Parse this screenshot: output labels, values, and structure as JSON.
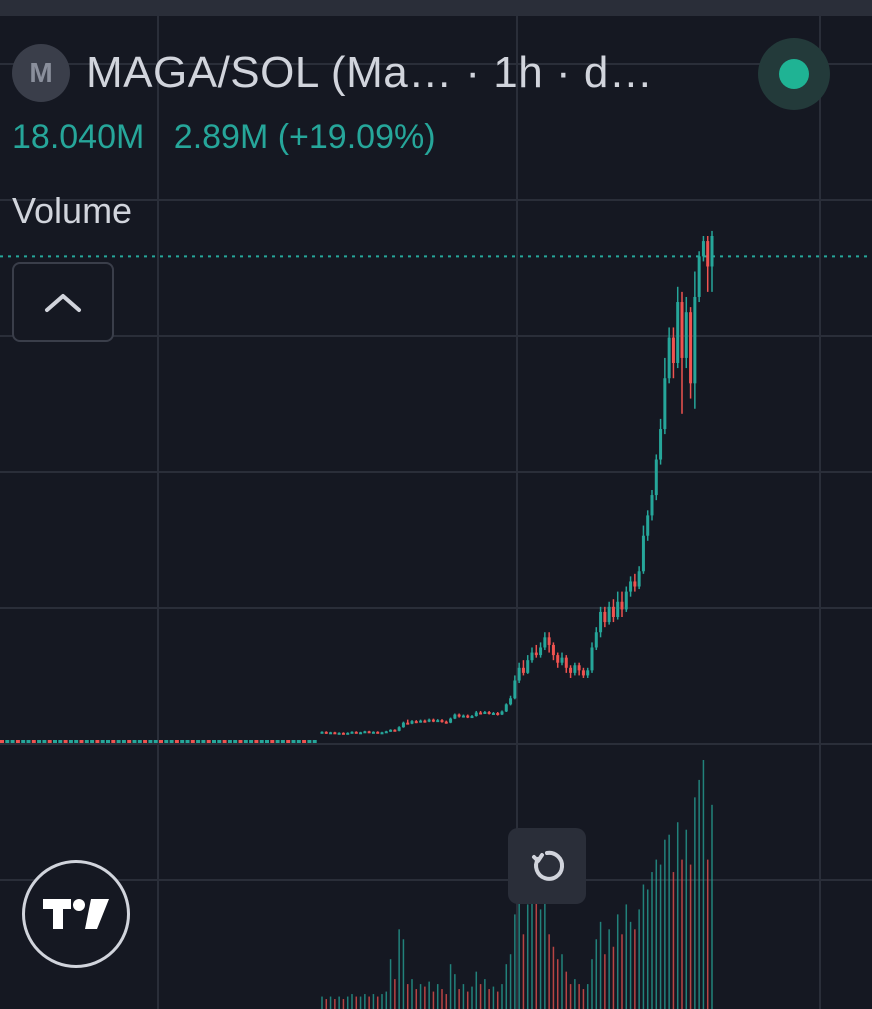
{
  "header": {
    "symbol_icon_letter": "M",
    "title": "MAGA/SOL (Ma…  · 1h · d…",
    "status_color": "#1fb394"
  },
  "values": {
    "volume": "18.040M",
    "change": "2.89M (+19.09%)"
  },
  "indicator": {
    "label": "Volume"
  },
  "icons": {
    "collapse": "chevron-up-icon",
    "reset": "reset-icon",
    "logo": "tradingview-logo-icon"
  },
  "colors": {
    "up": "#26a69a",
    "down": "#ef5350",
    "grid": "#2a2e39",
    "price_line": "#26a69a"
  },
  "chart_data": {
    "type": "candlestick",
    "title": "",
    "xlabel": "",
    "ylabel": "",
    "ylim": [
      0,
      100
    ],
    "last_price_level": 96,
    "candles": [
      [
        2.2,
        2.4,
        2.5,
        2.1
      ],
      [
        2.4,
        2.1,
        2.5,
        2.0
      ],
      [
        2.1,
        2.3,
        2.4,
        2.0
      ],
      [
        2.3,
        2.1,
        2.4,
        2.0
      ],
      [
        2.1,
        2.2,
        2.3,
        2.0
      ],
      [
        2.2,
        2.0,
        2.3,
        1.9
      ],
      [
        2.0,
        2.2,
        2.3,
        1.9
      ],
      [
        2.2,
        2.4,
        2.5,
        2.1
      ],
      [
        2.4,
        2.2,
        2.5,
        2.1
      ],
      [
        2.2,
        2.3,
        2.4,
        2.1
      ],
      [
        2.3,
        2.5,
        2.6,
        2.2
      ],
      [
        2.5,
        2.3,
        2.6,
        2.2
      ],
      [
        2.3,
        2.4,
        2.5,
        2.2
      ],
      [
        2.4,
        2.2,
        2.5,
        2.1
      ],
      [
        2.2,
        2.3,
        2.4,
        2.1
      ],
      [
        2.3,
        2.5,
        2.6,
        2.2
      ],
      [
        2.5,
        2.8,
        2.9,
        2.4
      ],
      [
        2.8,
        2.6,
        2.9,
        2.5
      ],
      [
        2.6,
        3.3,
        3.5,
        2.5
      ],
      [
        3.3,
        4.2,
        4.4,
        3.2
      ],
      [
        4.2,
        4.0,
        4.8,
        3.9
      ],
      [
        4.0,
        4.5,
        4.7,
        3.9
      ],
      [
        4.5,
        4.3,
        4.7,
        4.1
      ],
      [
        4.3,
        4.6,
        4.8,
        4.2
      ],
      [
        4.6,
        4.4,
        4.8,
        4.2
      ],
      [
        4.4,
        4.8,
        5.0,
        4.3
      ],
      [
        4.8,
        4.5,
        5.0,
        4.3
      ],
      [
        4.5,
        4.7,
        4.9,
        4.4
      ],
      [
        4.7,
        4.4,
        4.9,
        4.2
      ],
      [
        4.4,
        4.2,
        4.6,
        4.0
      ],
      [
        4.2,
        5.0,
        5.2,
        4.1
      ],
      [
        5.0,
        5.8,
        6.0,
        4.9
      ],
      [
        5.8,
        5.4,
        6.0,
        5.2
      ],
      [
        5.4,
        5.6,
        5.8,
        5.2
      ],
      [
        5.6,
        5.3,
        5.8,
        5.1
      ],
      [
        5.3,
        5.5,
        5.7,
        5.2
      ],
      [
        5.5,
        6.2,
        6.5,
        5.4
      ],
      [
        6.2,
        6.0,
        6.5,
        5.8
      ],
      [
        6.0,
        6.3,
        6.5,
        5.9
      ],
      [
        6.3,
        5.9,
        6.5,
        5.8
      ],
      [
        5.9,
        6.1,
        6.3,
        5.8
      ],
      [
        6.1,
        5.8,
        6.3,
        5.6
      ],
      [
        5.8,
        6.4,
        6.6,
        5.7
      ],
      [
        6.4,
        7.8,
        8.0,
        6.3
      ],
      [
        7.8,
        9.0,
        9.5,
        7.6
      ],
      [
        9.0,
        12.5,
        13.5,
        8.8
      ],
      [
        12.5,
        15.0,
        16.0,
        12.0
      ],
      [
        15.0,
        14.0,
        16.5,
        13.5
      ],
      [
        14.0,
        16.5,
        17.5,
        13.8
      ],
      [
        16.5,
        18.0,
        19.0,
        16.0
      ],
      [
        18.0,
        17.5,
        19.5,
        17.0
      ],
      [
        17.5,
        19.0,
        20.0,
        17.0
      ],
      [
        19.0,
        21.0,
        22.0,
        18.5
      ],
      [
        21.0,
        19.5,
        22.0,
        18.0
      ],
      [
        19.5,
        17.5,
        20.0,
        16.5
      ],
      [
        17.5,
        16.0,
        18.0,
        15.0
      ],
      [
        16.0,
        17.0,
        18.0,
        15.5
      ],
      [
        17.0,
        15.0,
        17.5,
        14.0
      ],
      [
        15.0,
        14.0,
        15.5,
        13.0
      ],
      [
        14.0,
        15.5,
        16.0,
        13.5
      ],
      [
        15.5,
        14.5,
        16.0,
        13.5
      ],
      [
        14.5,
        13.5,
        15.0,
        13.0
      ],
      [
        13.5,
        14.5,
        15.0,
        13.0
      ],
      [
        14.5,
        19.0,
        20.0,
        14.0
      ],
      [
        19.0,
        22.0,
        23.0,
        18.5
      ],
      [
        22.0,
        26.0,
        27.0,
        21.0
      ],
      [
        26.0,
        24.0,
        27.0,
        23.0
      ],
      [
        24.0,
        27.0,
        28.0,
        23.5
      ],
      [
        27.0,
        25.0,
        28.5,
        24.0
      ],
      [
        25.0,
        28.0,
        30.0,
        24.5
      ],
      [
        28.0,
        26.5,
        30.0,
        25.0
      ],
      [
        26.5,
        30.0,
        31.0,
        26.0
      ],
      [
        30.0,
        32.0,
        33.0,
        29.0
      ],
      [
        32.0,
        31.0,
        33.5,
        30.0
      ],
      [
        31.0,
        34.0,
        35.0,
        30.5
      ],
      [
        34.0,
        41.0,
        43.0,
        33.5
      ],
      [
        41.0,
        45.0,
        46.0,
        40.0
      ],
      [
        45.0,
        49.0,
        50.0,
        44.0
      ],
      [
        49.0,
        56.0,
        57.0,
        48.0
      ],
      [
        56.0,
        62.0,
        64.0,
        55.0
      ],
      [
        62.0,
        72.0,
        76.0,
        61.0
      ],
      [
        72.0,
        80.0,
        82.0,
        71.0
      ],
      [
        80.0,
        75.0,
        82.0,
        72.0
      ],
      [
        75.0,
        87.0,
        90.0,
        74.0
      ],
      [
        87.0,
        76.0,
        89.0,
        65.0
      ],
      [
        76.0,
        85.0,
        88.0,
        74.0
      ],
      [
        85.0,
        71.0,
        86.0,
        68.0
      ],
      [
        71.0,
        88.0,
        93.0,
        66.0
      ],
      [
        88.0,
        96.0,
        97.0,
        87.0
      ],
      [
        96.0,
        99.0,
        100.0,
        95.0
      ],
      [
        99.0,
        94.0,
        100.0,
        89.0
      ],
      [
        94.0,
        100.0,
        101.0,
        89.0
      ]
    ],
    "volume": [
      0.05,
      0.04,
      0.05,
      0.04,
      0.05,
      0.04,
      0.05,
      0.06,
      0.05,
      0.05,
      0.06,
      0.05,
      0.06,
      0.05,
      0.06,
      0.07,
      0.2,
      0.12,
      0.32,
      0.28,
      0.1,
      0.12,
      0.08,
      0.1,
      0.09,
      0.11,
      0.07,
      0.1,
      0.08,
      0.06,
      0.18,
      0.14,
      0.08,
      0.1,
      0.07,
      0.09,
      0.15,
      0.1,
      0.12,
      0.08,
      0.09,
      0.07,
      0.1,
      0.18,
      0.22,
      0.38,
      0.55,
      0.3,
      0.42,
      0.6,
      0.45,
      0.4,
      0.48,
      0.3,
      0.25,
      0.2,
      0.22,
      0.15,
      0.1,
      0.12,
      0.1,
      0.08,
      0.1,
      0.2,
      0.28,
      0.35,
      0.22,
      0.32,
      0.25,
      0.38,
      0.3,
      0.42,
      0.35,
      0.32,
      0.4,
      0.5,
      0.48,
      0.55,
      0.6,
      0.58,
      0.68,
      0.7,
      0.55,
      0.75,
      0.6,
      0.72,
      0.58,
      0.85,
      0.92,
      1.0,
      0.6,
      0.82
    ]
  }
}
